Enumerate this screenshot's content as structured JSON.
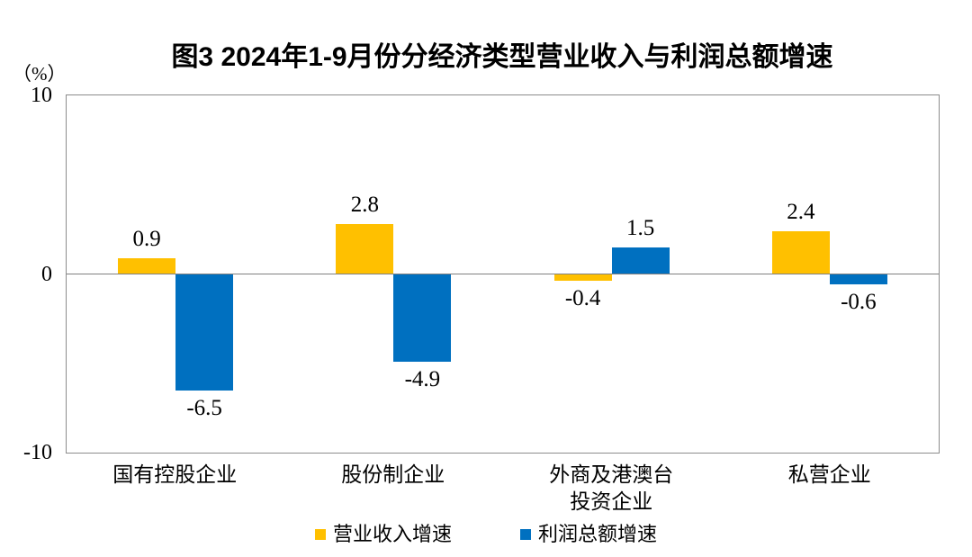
{
  "title": "图3 2024年1-9月份分经济类型营业收入与利润总额增速",
  "chart_data": {
    "type": "bar",
    "title": "图3 2024年1-9月份分经济类型营业收入与利润总额增速",
    "unit_label": "（%）",
    "categories": [
      "国有控股企业",
      "股份制企业",
      "外商及港澳台\n投资企业",
      "私营企业"
    ],
    "series": [
      {
        "key": "revenue-growth",
        "name": "营业收入增速",
        "color": "#FFC000",
        "values": [
          0.9,
          2.8,
          -0.4,
          2.4
        ]
      },
      {
        "key": "profit-growth",
        "name": "利润总额增速",
        "color": "#0070C0",
        "values": [
          -6.5,
          -4.9,
          1.5,
          -0.6
        ]
      }
    ],
    "ylim": [
      -10,
      10
    ],
    "yticks": [
      10,
      0,
      -10
    ],
    "grid": false,
    "legend_position": "bottom",
    "colors": {
      "axis_border": "#8C8C8C",
      "zero_line": "#808080",
      "text": "#000000",
      "background": "#FFFFFF"
    }
  }
}
